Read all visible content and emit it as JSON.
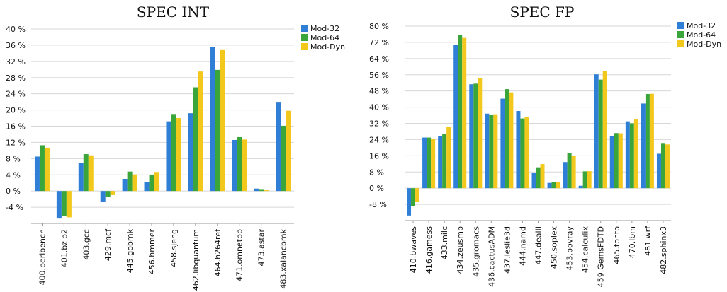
{
  "colors": {
    "mod32": "#2f7fd6",
    "mod64": "#3aa53a",
    "moddyn": "#f2c81c",
    "axis": "#9a9a9a",
    "grid": "#d7d7d7"
  },
  "chart_data": [
    {
      "type": "bar",
      "title": "SPEC INT",
      "xlabel": "",
      "ylabel": "",
      "categories": [
        "400.perlbench",
        "401.bzip2",
        "403.gcc",
        "429.mcf",
        "445.gobmk",
        "456.hmmer",
        "458.sjeng",
        "462.libquantum",
        "464.h264ref",
        "471.omnetpp",
        "473.astar",
        "483.xalancbmk"
      ],
      "series": [
        {
          "name": "Mod-32",
          "values": [
            8.5,
            -6.8,
            7.0,
            -2.7,
            3.0,
            2.2,
            17.2,
            19.2,
            35.6,
            12.6,
            0.6,
            22.0
          ]
        },
        {
          "name": "Mod-64",
          "values": [
            11.3,
            -6.2,
            9.1,
            -1.4,
            4.8,
            3.9,
            19.0,
            25.6,
            29.9,
            13.3,
            0.3,
            16.1
          ]
        },
        {
          "name": "Mod-Dyn",
          "values": [
            10.7,
            -6.5,
            8.8,
            -1.0,
            4.1,
            4.7,
            18.0,
            29.5,
            34.8,
            12.7,
            0.2,
            19.8
          ]
        }
      ],
      "ylim": [
        -8,
        40
      ],
      "yticks": [
        -4,
        0,
        4,
        8,
        12,
        16,
        20,
        24,
        28,
        32,
        36,
        40
      ],
      "ytick_labels": [
        "-4 %",
        "0 %",
        "4 %",
        "8 %",
        "12 %",
        "16 %",
        "20 %",
        "24 %",
        "28 %",
        "32 %",
        "36 %",
        "40 %"
      ],
      "grid": true,
      "legend": "top-right"
    },
    {
      "type": "bar",
      "title": "SPEC FP",
      "xlabel": "",
      "ylabel": "",
      "categories": [
        "410.bwaves",
        "416.gamess",
        "433.milc",
        "434.zeusmp",
        "435.gromacs",
        "436.cactusADM",
        "437.leslie3d",
        "444.namd",
        "447.dealII",
        "450.soplex",
        "453.povray",
        "454.calculix",
        "459.GemsFDTD",
        "465.tonto",
        "470.lbm",
        "481.wrf",
        "482.sphinx3"
      ],
      "series": [
        {
          "name": "Mod-32",
          "values": [
            -13.5,
            25.0,
            25.8,
            70.6,
            51.3,
            36.8,
            44.2,
            38.1,
            7.4,
            2.6,
            12.9,
            1.2,
            56.2,
            25.6,
            33.0,
            41.8,
            17.0
          ]
        },
        {
          "name": "Mod-64",
          "values": [
            -9.0,
            25.0,
            26.8,
            75.6,
            51.6,
            36.3,
            48.9,
            34.4,
            10.3,
            3.0,
            17.3,
            8.3,
            53.6,
            27.2,
            32.0,
            46.5,
            22.3
          ]
        },
        {
          "name": "Mod-Dyn",
          "values": [
            -6.8,
            24.5,
            30.3,
            74.2,
            54.4,
            36.5,
            47.3,
            35.0,
            11.9,
            2.9,
            16.1,
            8.4,
            57.9,
            27.1,
            33.9,
            46.6,
            21.6
          ]
        }
      ],
      "ylim": [
        -16,
        80
      ],
      "yticks": [
        -8,
        0,
        8,
        16,
        24,
        32,
        40,
        48,
        56,
        64,
        72,
        80
      ],
      "ytick_labels": [
        "-8 %",
        "0 %",
        "8 %",
        "16 %",
        "24 %",
        "32 %",
        "40 %",
        "48 %",
        "56 %",
        "64 %",
        "72 %",
        "80 %"
      ],
      "grid": true,
      "legend": "top-right"
    }
  ]
}
